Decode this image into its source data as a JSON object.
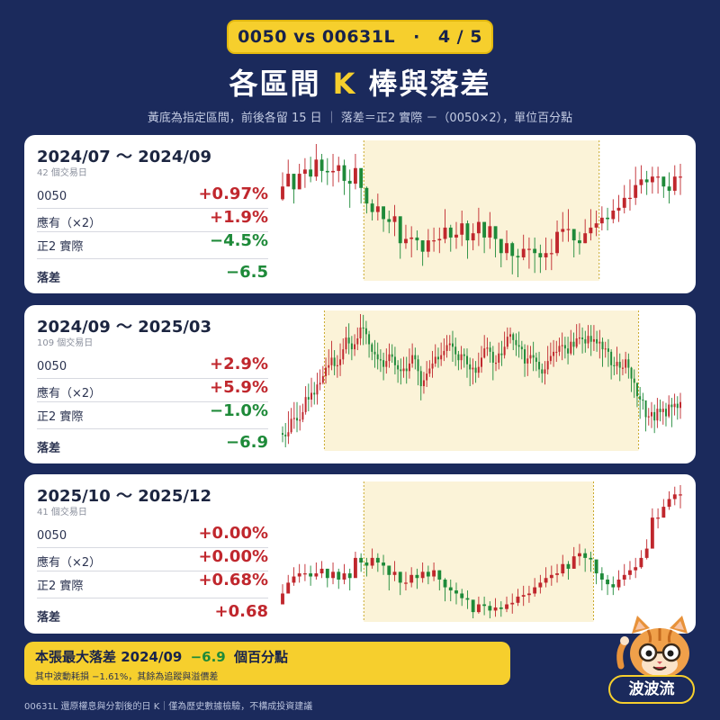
{
  "header": {
    "pill_left": "0050 vs 00631L",
    "pill_sep": "·",
    "pill_right": "4 / 5",
    "title_a": "各區間",
    "title_b": "K",
    "title_c": "棒與落差",
    "subtitle": "黃底為指定區間，前後各留 15 日 ｜ 落差＝正2 實際 －（0050×2），單位百分點"
  },
  "panels": [
    {
      "period": "2024/07 ～ 2024/09",
      "days": "42 個交易日",
      "rows": [
        {
          "label": "0050",
          "value": "+0.97%"
        },
        {
          "label": "應有（×2）",
          "value": "+1.9%"
        },
        {
          "label": "正2 實際",
          "value": "−4.5%"
        }
      ],
      "diff": {
        "label": "落差",
        "value": "−6.5"
      }
    },
    {
      "period": "2024/09 ～ 2025/03",
      "days": "109 個交易日",
      "rows": [
        {
          "label": "0050",
          "value": "+2.9%"
        },
        {
          "label": "應有（×2）",
          "value": "+5.9%"
        },
        {
          "label": "正2 實際",
          "value": "−1.0%"
        }
      ],
      "diff": {
        "label": "落差",
        "value": "−6.9"
      }
    },
    {
      "period": "2025/10 ～ 2025/12",
      "days": "41 個交易日",
      "rows": [
        {
          "label": "0050",
          "value": "+0.00%"
        },
        {
          "label": "應有（×2）",
          "value": "+0.00%"
        },
        {
          "label": "正2 實際",
          "value": "+0.68%"
        }
      ],
      "diff": {
        "label": "落差",
        "value": "+0.68"
      }
    }
  ],
  "summary": {
    "main_a": "本張最大落差 2024/09",
    "main_b": "−6.9",
    "main_c": "個百分點",
    "sub": "其中波動耗損 −1.61%，其餘為追蹤與溢價差"
  },
  "footer": "00631L 還原權息與分割後的日 K｜僅為歷史數據檢驗，不構成投資建議",
  "brand": "波波流",
  "colors": {
    "background": "#1b2a5c",
    "accent": "#f6cf2d",
    "up": "#c0272d",
    "down": "#1e8a39",
    "highlight": "#fbf3d8"
  },
  "chart_data": [
    {
      "type": "candlestick",
      "period": "2024/07 ～ 2024/09",
      "highlight_range": "2024/07 ～ 2024/09",
      "padding_days": 15,
      "pre_days": 15,
      "in_days": 42,
      "post_days": 15,
      "closes": [
        100.3,
        101.2,
        100.1,
        101.2,
        101.5,
        101.0,
        102.2,
        101.4,
        101.3,
        101.4,
        101.8,
        100.7,
        100.5,
        101.6,
        100.2,
        99.1,
        98.5,
        98.9,
        98.0,
        97.8,
        98.2,
        96.3,
        96.6,
        96.7,
        96.5,
        95.7,
        96.5,
        96.5,
        96.6,
        97.4,
        96.7,
        96.9,
        97.7,
        96.5,
        97.0,
        97.8,
        96.7,
        97.5,
        96.6,
        95.6,
        96.3,
        95.4,
        95.3,
        95.9,
        95.9,
        95.6,
        95.3,
        95.6,
        95.6,
        97.1,
        97.3,
        97.3,
        96.5,
        96.3,
        97.0,
        97.4,
        97.7,
        98.1,
        98.0,
        98.6,
        98.8,
        99.5,
        99.5,
        100.4,
        100.8,
        100.6,
        101.0,
        101.0,
        100.3,
        100.0,
        101.0,
        101.0
      ],
      "lows": [
        99.3,
        100.3,
        99.1,
        100.2,
        100.2,
        100.6,
        100.7,
        100.6,
        100.4,
        100.3,
        100.6,
        99.7,
        98.8,
        100.1,
        99.1,
        98.4,
        97.9,
        97.9,
        97.1,
        97.0,
        96.8,
        95.2,
        95.9,
        95.3,
        95.8,
        94.7,
        95.3,
        95.7,
        95.6,
        96.3,
        95.7,
        95.9,
        96.1,
        95.2,
        95.8,
        96.1,
        95.6,
        95.9,
        95.3,
        94.6,
        95.1,
        94.1,
        93.9,
        95.1,
        94.5,
        94.2,
        94.2,
        94.4,
        94.4,
        95.4,
        96.4,
        96.4,
        95.3,
        95.5,
        96.3,
        96.5,
        96.8,
        97.2,
        97.2,
        97.7,
        97.8,
        98.4,
        98.6,
        99.0,
        99.8,
        99.7,
        99.8,
        99.8,
        99.5,
        99.1,
        99.7,
        99.7
      ],
      "highs": [
        101.3,
        102.2,
        101.1,
        101.9,
        102.3,
        102.4,
        103.3,
        102.6,
        102.3,
        102.6,
        102.4,
        102.2,
        101.5,
        102.6,
        101.1,
        100.3,
        99.4,
        99.8,
        98.8,
        98.6,
        99.0,
        97.5,
        97.6,
        97.5,
        97.2,
        96.5,
        97.3,
        97.4,
        97.4,
        98.7,
        97.6,
        97.8,
        98.6,
        97.9,
        97.7,
        98.8,
        97.7,
        98.5,
        97.3,
        96.5,
        97.2,
        96.4,
        95.9,
        96.9,
        96.7,
        96.7,
        96.2,
        96.7,
        96.6,
        97.9,
        98.5,
        98.7,
        97.3,
        97.1,
        98.0,
        98.7,
        98.6,
        98.9,
        98.8,
        99.4,
        99.7,
        100.4,
        100.8,
        101.7,
        101.8,
        101.4,
        101.7,
        101.7,
        100.8,
        101.3,
        101.8,
        101.9
      ]
    },
    {
      "type": "candlestick",
      "period": "2024/09 ～ 2025/03",
      "highlight_range": "2024/09 ～ 2025/03",
      "padding_days": 15,
      "pre_days": 15,
      "in_days": 109,
      "post_days": 15,
      "closes": [
        99.6,
        99.4,
        99.9,
        101.5,
        101.6,
        101.3,
        101.4,
        102.3,
        104.1,
        103.8,
        104.6,
        104.4,
        105.6,
        105.8,
        106.6,
        107.6,
        107.9,
        108.8,
        107.8,
        107.9,
        108.6,
        109.8,
        111.2,
        110.5,
        109.8,
        110.4,
        111.1,
        112.4,
        112.3,
        111.6,
        110.4,
        109.5,
        109.2,
        108.6,
        108.5,
        107.7,
        108.4,
        109.2,
        108.9,
        107.9,
        107.4,
        107.2,
        107.5,
        107.2,
        108.1,
        109.1,
        108.6,
        107.2,
        105.4,
        106.1,
        106.9,
        107.5,
        108.1,
        108.9,
        108.6,
        109.1,
        109.6,
        110.3,
        110.5,
        110.1,
        109.2,
        108.5,
        109.2,
        109.0,
        108.0,
        107.4,
        107.6,
        107.0,
        107.7,
        108.8,
        109.9,
        110.0,
        109.5,
        108.2,
        108.2,
        109.3,
        109.1,
        110.1,
        111.3,
        111.6,
        110.9,
        110.3,
        110.1,
        109.8,
        108.1,
        108.7,
        109.1,
        108.8,
        108.3,
        107.4,
        106.9,
        107.4,
        108.4,
        109.0,
        109.5,
        109.5,
        110.2,
        110.3,
        109.9,
        109.3,
        110.7,
        110.1,
        111.1,
        111.2,
        111.0,
        110.5,
        111.4,
        110.7,
        111.0,
        110.5,
        110.7,
        109.8,
        109.9,
        109.5,
        107.9,
        107.8,
        108.3,
        107.6,
        107.6,
        108.6,
        107.6,
        106.3,
        105.8,
        104.2,
        103.8,
        103.7,
        101.7,
        101.8,
        102.3,
        101.3,
        102.7,
        102.3,
        102.7,
        101.8,
        103.2,
        102.9,
        103.3,
        102.8,
        103.5
      ],
      "lows": [
        98.7,
        98.1,
        98.5,
        99.7,
        100.3,
        99.9,
        100.1,
        101.1,
        102.0,
        102.4,
        102.9,
        103.2,
        103.2,
        104.9,
        105.6,
        105.7,
        106.7,
        107.3,
        106.7,
        106.4,
        106.6,
        108.0,
        109.3,
        109.2,
        108.5,
        109.0,
        109.7,
        110.3,
        110.3,
        110.4,
        108.8,
        108.5,
        107.6,
        107.4,
        107.1,
        106.1,
        106.9,
        107.6,
        108.2,
        106.8,
        105.8,
        105.6,
        106.4,
        105.7,
        106.3,
        107.6,
        107.4,
        105.5,
        103.7,
        104.5,
        105.3,
        106.5,
        106.4,
        107.7,
        107.6,
        107.8,
        108.4,
        108.8,
        109.6,
        108.3,
        107.8,
        107.3,
        107.4,
        107.6,
        106.4,
        105.4,
        105.6,
        105.8,
        106.4,
        107.0,
        108.7,
        109.0,
        108.2,
        106.1,
        107.2,
        107.4,
        107.8,
        108.7,
        109.8,
        110.5,
        109.7,
        109.0,
        108.8,
        108.6,
        106.5,
        106.6,
        108.1,
        107.2,
        107.2,
        106.4,
        105.8,
        105.6,
        106.8,
        108.0,
        107.7,
        108.3,
        109.0,
        108.5,
        108.7,
        108.0,
        109.1,
        109.1,
        109.9,
        110.4,
        109.3,
        109.4,
        109.9,
        109.0,
        109.6,
        109.5,
        108.7,
        107.7,
        108.8,
        107.7,
        106.2,
        106.7,
        106.8,
        106.0,
        106.7,
        106.9,
        106.3,
        104.7,
        104.0,
        102.9,
        101.5,
        102.6,
        100.0,
        100.7,
        100.4,
        99.8,
        100.4,
        101.2,
        100.8,
        100.6,
        101.6,
        100.5,
        101.9,
        101.4,
        101.5
      ],
      "highs": [
        100.6,
        101.0,
        102.4,
        102.8,
        103.5,
        103.5,
        103.1,
        103.3,
        105.4,
        105.7,
        106.4,
        105.9,
        107.0,
        107.4,
        107.8,
        108.8,
        109.8,
        110.8,
        109.7,
        109.1,
        110.5,
        111.1,
        112.5,
        112.9,
        111.4,
        111.6,
        112.4,
        114.0,
        113.9,
        113.2,
        112.0,
        110.6,
        110.9,
        110.6,
        109.8,
        109.4,
        109.9,
        110.5,
        110.4,
        110.1,
        108.5,
        108.7,
        108.9,
        108.9,
        109.9,
        110.5,
        110.0,
        109.1,
        107.8,
        107.1,
        108.4,
        108.5,
        109.6,
        110.4,
        110.0,
        110.6,
        111.1,
        111.5,
        111.5,
        112.0,
        111.2,
        109.6,
        110.2,
        109.9,
        109.9,
        108.8,
        108.7,
        108.4,
        109.4,
        110.2,
        111.5,
        111.2,
        110.7,
        110.2,
        109.1,
        110.6,
        110.8,
        111.9,
        112.4,
        112.4,
        111.8,
        111.7,
        111.9,
        110.8,
        110.4,
        110.3,
        110.2,
        110.7,
        109.4,
        109.5,
        108.1,
        108.4,
        110.2,
        110.6,
        110.9,
        110.8,
        111.2,
        111.8,
        111.3,
        111.3,
        112.1,
        111.8,
        112.8,
        112.9,
        112.4,
        112.0,
        112.7,
        112.7,
        112.7,
        112.0,
        112.1,
        111.2,
        110.7,
        111.0,
        109.8,
        108.9,
        110.1,
        109.3,
        108.6,
        109.5,
        109.3,
        107.7,
        107.4,
        105.7,
        105.3,
        104.6,
        103.4,
        102.8,
        103.5,
        103.2,
        104.0,
        103.8,
        103.6,
        103.4,
        104.3,
        104.0,
        104.5,
        104.2,
        104.6
      ]
    },
    {
      "type": "candlestick",
      "period": "2025/10 ～ 2025/12",
      "highlight_range": "2025/10 ～ 2025/12",
      "padding_days": 15,
      "pre_days": 15,
      "in_days": 41,
      "post_days": 15,
      "closes": [
        99.4,
        100.1,
        100.5,
        100.7,
        100.7,
        100.5,
        100.7,
        101.0,
        100.4,
        100.8,
        100.3,
        100.7,
        100.4,
        101.7,
        101.4,
        101.2,
        101.7,
        101.4,
        101.2,
        100.6,
        100.8,
        100.1,
        100.1,
        100.6,
        100.4,
        100.8,
        100.5,
        100.9,
        100.3,
        99.8,
        99.6,
        99.4,
        99.1,
        99.0,
        98.2,
        98.7,
        98.6,
        98.3,
        98.5,
        98.4,
        98.7,
        98.8,
        99.2,
        99.3,
        99.4,
        99.8,
        100.1,
        100.4,
        100.6,
        100.7,
        101.3,
        101.0,
        101.8,
        102.0,
        101.7,
        101.6,
        100.7,
        100.3,
        100.0,
        99.8,
        100.3,
        100.6,
        100.9,
        101.1,
        101.7,
        102.3,
        104.3,
        104.3,
        105.0,
        105.5,
        105.8,
        105.8
      ],
      "lows": [
        98.7,
        99.6,
        99.9,
        100.1,
        100.2,
        99.9,
        100.3,
        100.4,
        99.8,
        100.0,
        99.7,
        100.0,
        99.6,
        100.7,
        100.8,
        100.5,
        101.0,
        100.8,
        100.6,
        99.6,
        100.2,
        99.3,
        99.6,
        99.8,
        99.7,
        100.1,
        100.0,
        100.2,
        99.6,
        98.9,
        98.9,
        98.7,
        98.6,
        98.4,
        97.8,
        98.1,
        98.0,
        97.8,
        97.9,
        97.9,
        98.2,
        98.1,
        98.6,
        98.6,
        98.8,
        99.2,
        99.4,
        99.8,
        99.9,
        100.1,
        100.5,
        100.3,
        101.0,
        101.2,
        100.8,
        100.8,
        100.0,
        99.6,
        99.3,
        99.3,
        99.6,
        99.9,
        100.3,
        100.4,
        101.0,
        101.6,
        103.1,
        103.6,
        104.3,
        104.8,
        105.1,
        104.9
      ],
      "highs": [
        100.0,
        100.6,
        101.1,
        101.3,
        101.3,
        101.2,
        101.4,
        101.5,
        101.0,
        101.4,
        101.0,
        101.3,
        101.0,
        102.1,
        102.0,
        101.7,
        102.3,
        102.0,
        101.9,
        101.2,
        101.5,
        100.8,
        100.8,
        101.1,
        101.0,
        101.4,
        101.2,
        101.4,
        100.9,
        100.4,
        100.3,
        100.1,
        99.7,
        99.6,
        98.9,
        99.2,
        99.2,
        98.9,
        99.1,
        98.9,
        99.2,
        99.4,
        99.7,
        99.9,
        99.9,
        100.4,
        100.6,
        101.1,
        101.2,
        101.3,
        101.9,
        101.5,
        102.4,
        102.6,
        102.3,
        102.1,
        101.4,
        101.1,
        100.6,
        100.5,
        100.9,
        101.3,
        101.5,
        101.7,
        102.2,
        102.9,
        104.9,
        104.9,
        105.5,
        106.0,
        106.3,
        106.4
      ]
    }
  ]
}
